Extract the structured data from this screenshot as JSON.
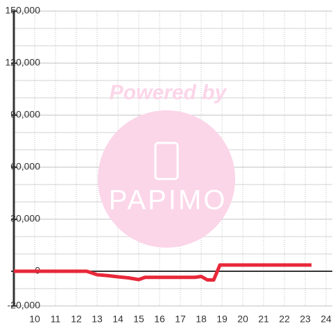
{
  "chart_data": {
    "type": "line",
    "watermark": {
      "line1": "Powered by",
      "line2": "PAPIMO"
    },
    "x": [
      9,
      12.5,
      13,
      13.5,
      14,
      14.5,
      15,
      15.3,
      16,
      17,
      17.7,
      18,
      18.3,
      18.6,
      18.9,
      23.3
    ],
    "series": [
      {
        "color": "#e8283a",
        "values": [
          0,
          0,
          -2000,
          -2500,
          -3200,
          -3800,
          -4800,
          -3500,
          -3500,
          -3500,
          -3500,
          -3000,
          -5000,
          -5000,
          3600,
          3600
        ]
      }
    ],
    "xlim": [
      9,
      24.3
    ],
    "xticks": [
      10,
      11,
      12,
      13,
      14,
      15,
      16,
      17,
      18,
      19,
      20,
      21,
      22,
      23,
      24
    ],
    "ylim": [
      -20000,
      150000
    ],
    "yticks": [
      {
        "value": -20000,
        "label": "-20,000"
      },
      0,
      {
        "value": 30000,
        "label": "30,000"
      },
      {
        "value": 60000,
        "label": "60,000"
      },
      {
        "value": 90000,
        "label": "90,000"
      },
      {
        "value": 120000,
        "label": "120,000"
      },
      {
        "value": 150000,
        "label": "150,000"
      }
    ],
    "y_minor_ticks": [
      -10000,
      10000,
      20000,
      40000,
      50000,
      70000,
      80000,
      100000,
      110000,
      130000,
      140000
    ],
    "grid": true
  }
}
